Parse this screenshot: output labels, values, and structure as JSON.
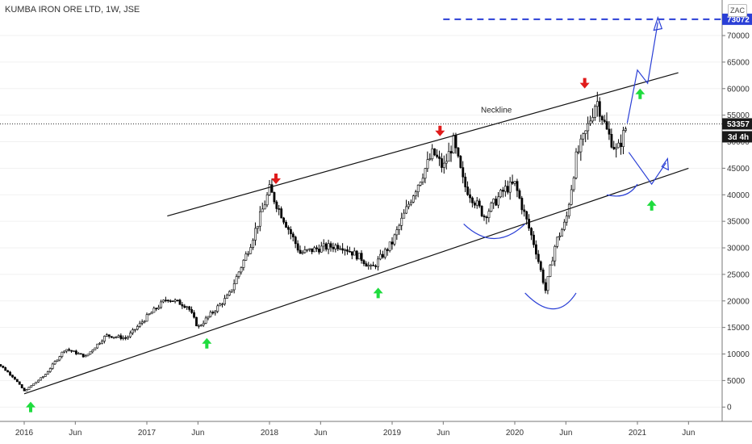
{
  "header": {
    "title": "KUMBA IRON ORE LTD, 1W, JSE",
    "currency": "ZAC"
  },
  "price_axis": {
    "ticks": [
      0,
      5000,
      10000,
      15000,
      20000,
      25000,
      30000,
      35000,
      40000,
      45000,
      50000,
      55000,
      60000,
      65000,
      70000
    ],
    "last_price": "53357",
    "countdown": "3d 4h",
    "target_label": "73072"
  },
  "time_axis": {
    "labels": [
      "2016",
      "Jun",
      "2017",
      "Jun",
      "2018",
      "Jun",
      "2019",
      "Jun",
      "2020",
      "Jun",
      "2021",
      "Jun"
    ]
  },
  "annotations": {
    "neckline": "Neckline"
  },
  "colors": {
    "up_arrow": "#1fdc3e",
    "down_arrow": "#e01b1b",
    "projection": "#2a3fd6",
    "candle": "#000000",
    "price_tag": "#1a1a1a",
    "target_tag": "#2a3fd6"
  },
  "chart_data": {
    "type": "candlestick",
    "instrument": "KUMBA IRON ORE LTD",
    "interval": "1W",
    "exchange": "JSE",
    "unit": "ZAC",
    "ylim": [
      -2700,
      76700
    ],
    "xlim": [
      "2015-10",
      "2021-09"
    ],
    "last_price": 53357,
    "target": 73072,
    "close_path": [
      [
        "2015-10",
        9000
      ],
      [
        "2015-12",
        5500
      ],
      [
        "2016-01",
        3000
      ],
      [
        "2016-03",
        6000
      ],
      [
        "2016-05",
        11000
      ],
      [
        "2016-07",
        9500
      ],
      [
        "2016-09",
        13500
      ],
      [
        "2016-11",
        13000
      ],
      [
        "2017-01",
        17000
      ],
      [
        "2017-03",
        20500
      ],
      [
        "2017-05",
        19000
      ],
      [
        "2017-06",
        15000
      ],
      [
        "2017-07",
        17000
      ],
      [
        "2017-09",
        21000
      ],
      [
        "2017-11",
        30000
      ],
      [
        "2018-01",
        41000
      ],
      [
        "2018-02",
        37000
      ],
      [
        "2018-04",
        29000
      ],
      [
        "2018-06",
        30000
      ],
      [
        "2018-08",
        30500
      ],
      [
        "2018-10",
        28000
      ],
      [
        "2018-11",
        26000
      ],
      [
        "2019-01",
        31000
      ],
      [
        "2019-03",
        40000
      ],
      [
        "2019-05",
        48000
      ],
      [
        "2019-06",
        45000
      ],
      [
        "2019-07",
        50000
      ],
      [
        "2019-08",
        42000
      ],
      [
        "2019-10",
        36000
      ],
      [
        "2019-12",
        41000
      ],
      [
        "2020-01",
        42000
      ],
      [
        "2020-02",
        36000
      ],
      [
        "2020-03",
        30000
      ],
      [
        "2020-04",
        22000
      ],
      [
        "2020-05",
        31000
      ],
      [
        "2020-06",
        35000
      ],
      [
        "2020-07",
        47000
      ],
      [
        "2020-08",
        52000
      ],
      [
        "2020-09",
        58000
      ],
      [
        "2020-10",
        52000
      ],
      [
        "2020-11",
        48000
      ],
      [
        "2020-12",
        53357
      ]
    ]
  }
}
